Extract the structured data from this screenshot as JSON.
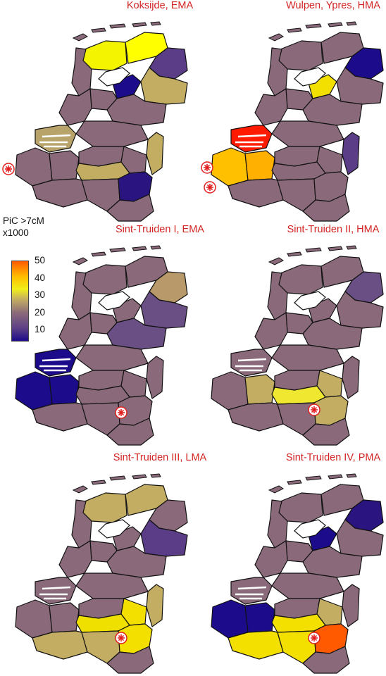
{
  "panels": [
    {
      "title": "Koksijde, EMA",
      "regions": {
        "groningen": "#ffff00",
        "friesland": "#f4f300",
        "drenthe": "#5a3d86",
        "noordholland": "#8a6a7a",
        "flevoland": "#1c0b8a",
        "overijssel": "#c3ad62",
        "gelderland": "#8a6a7a",
        "utrecht": "#8a6a7a",
        "zuidholland": "#8a6a7a",
        "zeeland": "#b8a36a",
        "nbrabant": "#8a6a7a",
        "limburgnl": "#c3ad62",
        "westvl": "#8a6a7a",
        "oostvl": "#8a6a7a",
        "antwerpen": "#8a6a7a",
        "limburgbe": "#8a6a7a",
        "vlbrabant": "#c3ad62",
        "liege": "#2a1480",
        "hainaut": "#8a6a7a",
        "namur": "#8a6a7a",
        "luxembourg": "#8a6a7a"
      },
      "sites": 1
    },
    {
      "title": "Wulpen, Ypres, HMA",
      "regions": {
        "groningen": "#8a6a7a",
        "friesland": "#8a6a7a",
        "drenthe": "#1c0b8a",
        "noordholland": "#8a6a7a",
        "flevoland": "#f4e000",
        "overijssel": "#8a6a7a",
        "gelderland": "#8a6a7a",
        "utrecht": "#8a6a7a",
        "zuidholland": "#8a6a7a",
        "zeeland": "#ff1a00",
        "nbrabant": "#8a6a7a",
        "limburgnl": "#5a3d86",
        "westvl": "#ffc000",
        "oostvl": "#ffb000",
        "antwerpen": "#8a6a7a",
        "limburgbe": "#8a6a7a",
        "vlbrabant": "#8a6a7a",
        "liege": "#8a6a7a",
        "hainaut": "#8a6a7a",
        "namur": "#8a6a7a",
        "luxembourg": "#8a6a7a"
      },
      "sites": 2
    },
    {
      "title": "Sint-Truiden I, EMA",
      "regions": {
        "groningen": "#8a6a7a",
        "friesland": "#8a6a7a",
        "drenthe": "#b89a6a",
        "noordholland": "#8a6a7a",
        "flevoland": "#8a6a7a",
        "overijssel": "#6a4f84",
        "gelderland": "#6a4f84",
        "utrecht": "#8a6a7a",
        "zuidholland": "#8a6a7a",
        "zeeland": "#1c0b8a",
        "nbrabant": "#8a6a7a",
        "limburgnl": "#8a6a7a",
        "westvl": "#1c0b8a",
        "oostvl": "#1c0b8a",
        "antwerpen": "#8a6a7a",
        "limburgbe": "#8a6a7a",
        "vlbrabant": "#8a6a7a",
        "liege": "#8a6a7a",
        "hainaut": "#8a6a7a",
        "namur": "#8a6a7a",
        "luxembourg": "#8a6a7a"
      },
      "sites": 1
    },
    {
      "title": "Sint-Truiden II, HMA",
      "regions": {
        "groningen": "#8a6a7a",
        "friesland": "#8a6a7a",
        "drenthe": "#6a4f84",
        "noordholland": "#8a6a7a",
        "flevoland": "#8a6a7a",
        "overijssel": "#8a6a7a",
        "gelderland": "#8a6a7a",
        "utrecht": "#8a6a7a",
        "zuidholland": "#8a6a7a",
        "zeeland": "#8a6a7a",
        "nbrabant": "#8a6a7a",
        "limburgnl": "#8a6a7a",
        "westvl": "#8a6a7a",
        "oostvl": "#c3ad62",
        "antwerpen": "#8a6a7a",
        "limburgbe": "#c3ad62",
        "vlbrabant": "#f0e830",
        "liege": "#c3ad62",
        "hainaut": "#8a6a7a",
        "namur": "#8a6a7a",
        "luxembourg": "#8a6a7a"
      },
      "sites": 1
    },
    {
      "title": "Sint-Truiden III, LMA",
      "regions": {
        "groningen": "#c3ad62",
        "friesland": "#c3ad62",
        "drenthe": "#8a6a7a",
        "noordholland": "#8a6a7a",
        "flevoland": "#8a6a7a",
        "overijssel": "#5a3d86",
        "gelderland": "#8a6a7a",
        "utrecht": "#8a6a7a",
        "zuidholland": "#8a6a7a",
        "zeeland": "#8a6a7a",
        "nbrabant": "#8a6a7a",
        "limburgnl": "#c3ad62",
        "westvl": "#8a6a7a",
        "oostvl": "#8a6a7a",
        "antwerpen": "#8a6a7a",
        "limburgbe": "#f4e000",
        "vlbrabant": "#f0e000",
        "liege": "#f4e000",
        "hainaut": "#c3ad62",
        "namur": "#c3ad62",
        "luxembourg": "#8a6a7a"
      },
      "sites": 1
    },
    {
      "title": "Sint-Truiden IV, PMA",
      "regions": {
        "groningen": "#8a6a7a",
        "friesland": "#8a6a7a",
        "drenthe": "#2a1480",
        "noordholland": "#8a6a7a",
        "flevoland": "#1c0b8a",
        "overijssel": "#8a6a7a",
        "gelderland": "#8a6a7a",
        "utrecht": "#8a6a7a",
        "zuidholland": "#8a6a7a",
        "zeeland": "#8a6a7a",
        "nbrabant": "#8a6a7a",
        "limburgnl": "#8a6a7a",
        "westvl": "#1c0b8a",
        "oostvl": "#1c0b8a",
        "antwerpen": "#8a6a7a",
        "limburgbe": "#c3ad62",
        "vlbrabant": "#f4e000",
        "liege": "#ff5a00",
        "hainaut": "#f4e000",
        "namur": "#f4e000",
        "luxembourg": "#8a6a7a"
      },
      "sites": 1
    }
  ],
  "legend": {
    "title_line1": "PiC >7cM",
    "title_line2": "x1000",
    "ticks": [
      "50",
      "40",
      "30",
      "20",
      "10"
    ]
  }
}
